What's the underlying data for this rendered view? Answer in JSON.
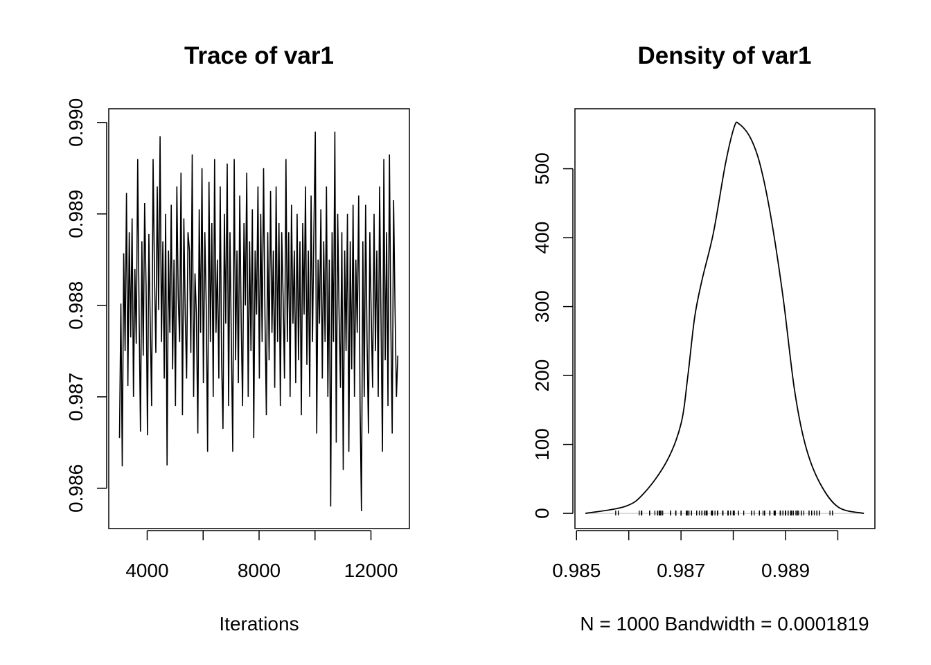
{
  "chart_data": [
    {
      "type": "line",
      "title": "Trace of var1",
      "xlabel": "Iterations",
      "ylabel": "",
      "xlim": [
        2626,
        13374
      ],
      "ylim": [
        0.98556,
        0.99015
      ],
      "x_ticks": [
        4000,
        8000,
        12000
      ],
      "x_tick_labels": [
        "4000",
        "8000",
        "12000"
      ],
      "x_minor_ticks": [
        4000,
        6000,
        8000,
        10000,
        12000
      ],
      "y_ticks": [
        0.986,
        0.987,
        0.988,
        0.989,
        0.99
      ],
      "y_tick_labels": [
        "0.986",
        "0.987",
        "0.988",
        "0.989",
        "0.990"
      ],
      "grid": false,
      "iterations": {
        "start": 3010,
        "end": 12960,
        "thin": 50
      },
      "values": [
        0.98655,
        0.98802,
        0.98624,
        0.98857,
        0.9875,
        0.98923,
        0.98712,
        0.9888,
        0.98765,
        0.98895,
        0.987,
        0.9884,
        0.98758,
        0.9896,
        0.9879,
        0.98662,
        0.9887,
        0.98745,
        0.98912,
        0.9882,
        0.98658,
        0.98878,
        0.9878,
        0.9869,
        0.9896,
        0.98835,
        0.98748,
        0.9893,
        0.98795,
        0.98985,
        0.9876,
        0.9887,
        0.9872,
        0.989,
        0.98625,
        0.9886,
        0.9877,
        0.9891,
        0.9873,
        0.9885,
        0.9869,
        0.9893,
        0.9881,
        0.9876,
        0.98945,
        0.9868,
        0.98895,
        0.9879,
        0.9872,
        0.9888,
        0.9886,
        0.98748,
        0.98965,
        0.987,
        0.98835,
        0.9879,
        0.9866,
        0.98905,
        0.9877,
        0.9895,
        0.98715,
        0.9888,
        0.988,
        0.9864,
        0.98935,
        0.9876,
        0.9889,
        0.987,
        0.9896,
        0.9877,
        0.9885,
        0.9872,
        0.9893,
        0.9874,
        0.98665,
        0.989,
        0.9878,
        0.98955,
        0.9869,
        0.9888,
        0.9876,
        0.9864,
        0.9896,
        0.9874,
        0.9886,
        0.98715,
        0.9892,
        0.9878,
        0.9869,
        0.9889,
        0.988,
        0.98945,
        0.987,
        0.9887,
        0.9875,
        0.98905,
        0.98655,
        0.9886,
        0.9879,
        0.9893,
        0.9872,
        0.989,
        0.9876,
        0.9895,
        0.9879,
        0.9868,
        0.9888,
        0.9874,
        0.98925,
        0.9877,
        0.9886,
        0.9871,
        0.9893,
        0.9876,
        0.9889,
        0.9869,
        0.9888,
        0.9881,
        0.9872,
        0.9896,
        0.9876,
        0.9888,
        0.987,
        0.9891,
        0.9878,
        0.9886,
        0.98715,
        0.989,
        0.9874,
        0.9887,
        0.9868,
        0.9889,
        0.9879,
        0.9893,
        0.98735,
        0.9886,
        0.987,
        0.9892,
        0.9876,
        0.9888,
        0.9899,
        0.9866,
        0.9885,
        0.9878,
        0.98905,
        0.9872,
        0.9887,
        0.9876,
        0.9893,
        0.987,
        0.9885,
        0.9858,
        0.9888,
        0.9876,
        0.9899,
        0.9865,
        0.989,
        0.9879,
        0.9871,
        0.9888,
        0.9862,
        0.9886,
        0.9875,
        0.989,
        0.9864,
        0.9887,
        0.9873,
        0.9891,
        0.987,
        0.9885,
        0.9877,
        0.9892,
        0.9869,
        0.98575,
        0.9887,
        0.987,
        0.9891,
        0.9876,
        0.9866,
        0.9888,
        0.9879,
        0.9871,
        0.989,
        0.9875,
        0.9886,
        0.987,
        0.9893,
        0.9878,
        0.9864,
        0.9896,
        0.9874,
        0.9888,
        0.9869,
        0.98965,
        0.9878,
        0.9866,
        0.98915,
        0.988,
        0.987,
        0.98745
      ],
      "color": "#000000"
    },
    {
      "type": "line",
      "title": "Density of var1",
      "xlabel": "N = 1000   Bandwidth = 0.0001819",
      "ylabel": "",
      "xlim": [
        0.98497,
        0.99071
      ],
      "ylim": [
        -22,
        587
      ],
      "x_ticks": [
        0.985,
        0.986,
        0.987,
        0.988,
        0.989,
        0.99
      ],
      "x_tick_labels": [
        "0.985",
        "",
        "0.987",
        "",
        "0.989",
        ""
      ],
      "y_ticks": [
        0,
        100,
        200,
        300,
        400,
        500
      ],
      "y_tick_labels": [
        "0",
        "100",
        "200",
        "300",
        "400",
        "500"
      ],
      "grid": false,
      "rug": true,
      "x": [
        0.98517,
        0.98593,
        0.9863,
        0.98673,
        0.987,
        0.98713,
        0.98726,
        0.9874,
        0.98762,
        0.98785,
        0.98802,
        0.98811,
        0.98832,
        0.98851,
        0.98872,
        0.98895,
        0.98917,
        0.98938,
        0.98965,
        0.99001,
        0.9905
      ],
      "y": [
        0,
        10,
        30,
        76,
        130,
        199,
        284,
        338,
        407,
        507,
        561,
        565,
        546,
        507,
        430,
        315,
        180,
        99,
        45,
        9,
        0
      ],
      "color": "#000000",
      "zero_line_color": "#bebebe"
    }
  ]
}
